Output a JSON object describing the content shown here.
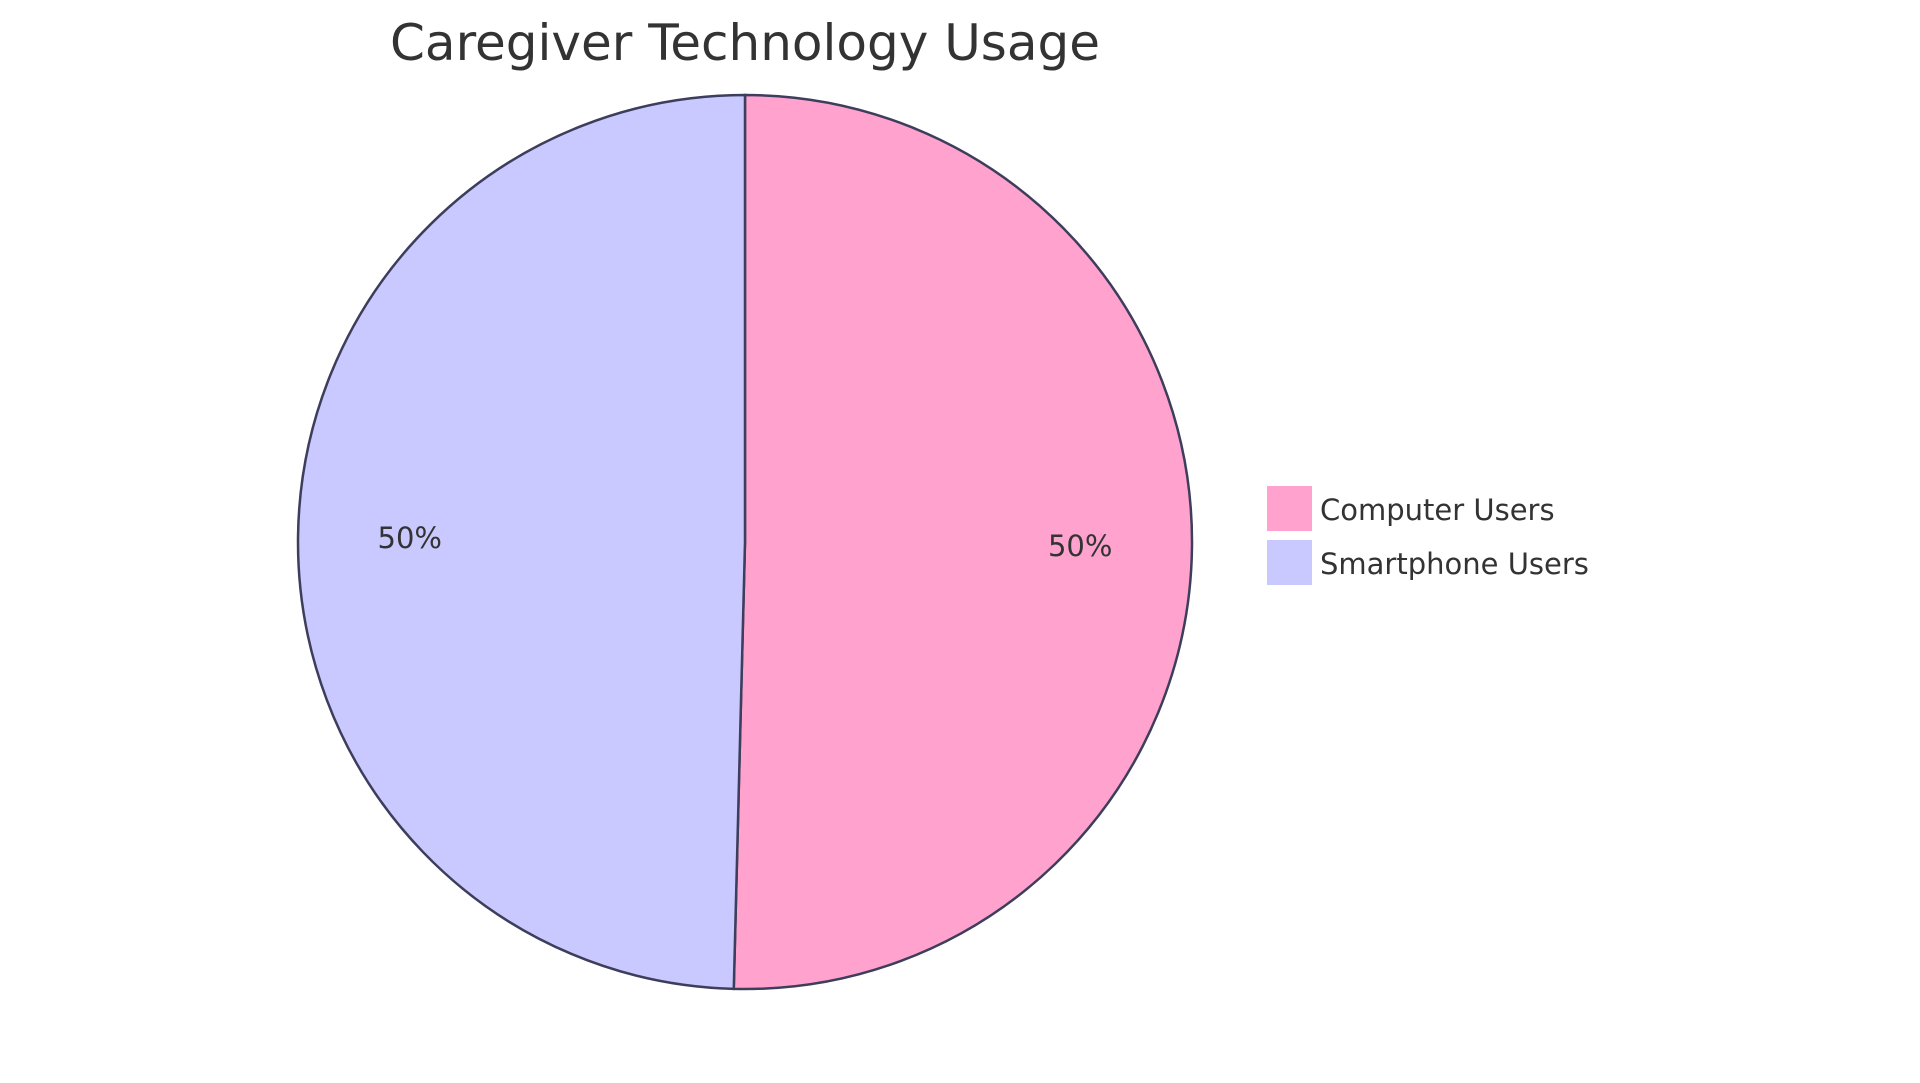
{
  "chart_data": {
    "type": "pie",
    "title": "Caregiver Technology Usage",
    "slices": [
      {
        "label": "Computer Users",
        "value": 50.4,
        "display": "50%",
        "color": "#FFA3CE"
      },
      {
        "label": "Smartphone Users",
        "value": 49.6,
        "display": "50%",
        "color": "#C9C9FF"
      }
    ],
    "stroke_color": "#3D3D5C",
    "legend_position": "right",
    "start_angle": "top, clockwise"
  }
}
